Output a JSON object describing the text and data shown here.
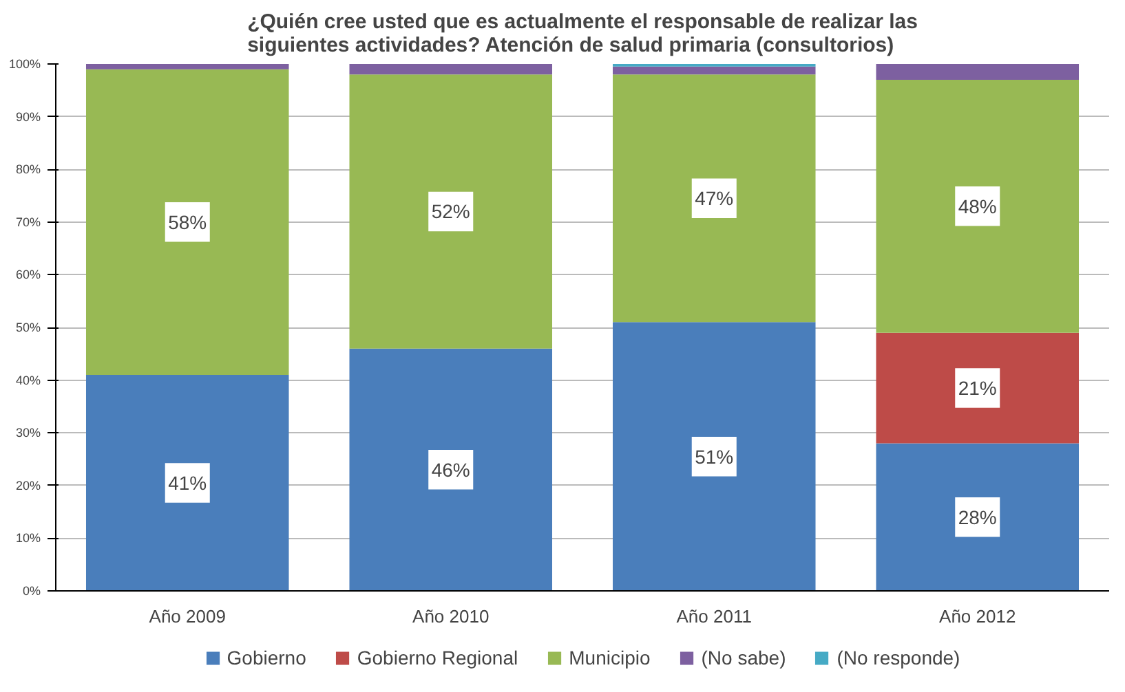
{
  "chart_data": {
    "type": "bar",
    "stacked": true,
    "title": "¿Quién cree usted que es actualmente el responsable de realizar las\nsiguientes actividades? Atención de salud primaria (consultorios)",
    "categories": [
      "Año 2009",
      "Año 2010",
      "Año 2011",
      "Año 2012"
    ],
    "series": [
      {
        "name": "Gobierno",
        "color": "#4a7ebb",
        "values": [
          41,
          46,
          51,
          28
        ],
        "value_labels": [
          "41%",
          "46%",
          "51%",
          "28%"
        ]
      },
      {
        "name": "Gobierno Regional",
        "color": "#be4b48",
        "values": [
          null,
          null,
          null,
          21
        ],
        "value_labels": [
          null,
          null,
          null,
          "21%"
        ]
      },
      {
        "name": "Municipio",
        "color": "#98b954",
        "values": [
          58,
          52,
          47,
          48
        ],
        "value_labels": [
          "58%",
          "52%",
          "47%",
          "48%"
        ]
      },
      {
        "name": "(No sabe)",
        "color": "#7d60a0",
        "values": [
          1,
          2,
          1.5,
          3
        ]
      },
      {
        "name": "(No responde)",
        "color": "#46aac5",
        "values": [
          null,
          null,
          0.5,
          null
        ]
      }
    ],
    "ylim": [
      0,
      100
    ],
    "yticks": [
      {
        "value": 0,
        "label": "0%"
      },
      {
        "value": 10,
        "label": "10%"
      },
      {
        "value": 20,
        "label": "20%"
      },
      {
        "value": 30,
        "label": "30%"
      },
      {
        "value": 40,
        "label": "40%"
      },
      {
        "value": 50,
        "label": "50%"
      },
      {
        "value": 60,
        "label": "60%"
      },
      {
        "value": 70,
        "label": "70%"
      },
      {
        "value": 80,
        "label": "80%"
      },
      {
        "value": 90,
        "label": "90%"
      },
      {
        "value": 100,
        "label": "100%"
      }
    ],
    "grid": "y",
    "legend": "bottom"
  }
}
